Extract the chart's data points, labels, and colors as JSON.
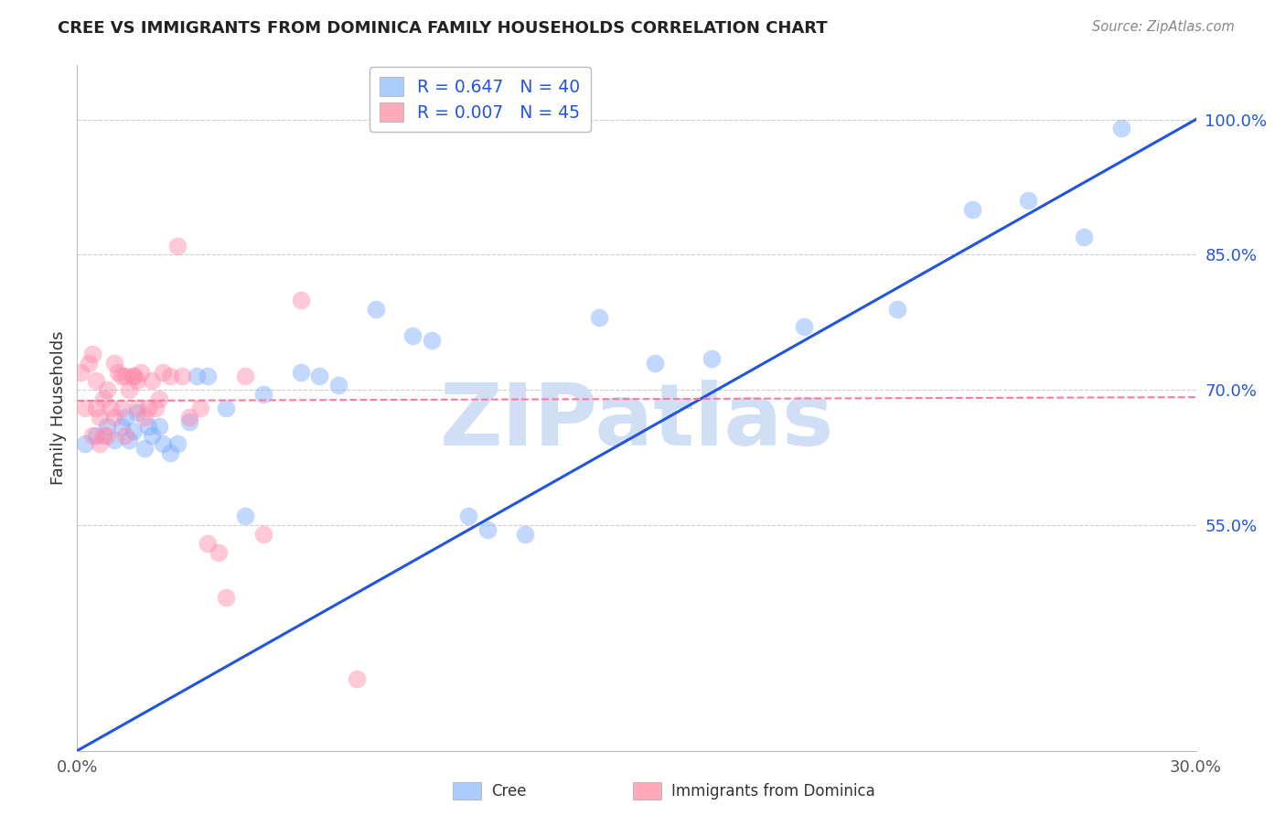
{
  "title": "CREE VS IMMIGRANTS FROM DOMINICA FAMILY HOUSEHOLDS CORRELATION CHART",
  "source": "Source: ZipAtlas.com",
  "ylabel": "Family Households",
  "ytick_labels": [
    "100.0%",
    "85.0%",
    "70.0%",
    "55.0%"
  ],
  "ytick_values": [
    1.0,
    0.85,
    0.7,
    0.55
  ],
  "xmin": 0.0,
  "xmax": 0.3,
  "ymin": 0.3,
  "ymax": 1.06,
  "legend_line1": "R = 0.647   N = 40",
  "legend_line2": "R = 0.007   N = 45",
  "cree_color": "#7aaaff",
  "dominica_color": "#ff88aa",
  "cree_line_color": "#2255dd",
  "dominica_line_color": "#ff7799",
  "watermark": "ZIPatlas",
  "watermark_color": "#d0dff5",
  "background_color": "#ffffff",
  "grid_color": "#cccccc",
  "blue_line_x0": 0.0,
  "blue_line_y0": 0.3,
  "blue_line_x1": 0.3,
  "blue_line_y1": 1.0,
  "pink_line_x0": 0.0,
  "pink_line_y0": 0.688,
  "pink_line_x1": 0.3,
  "pink_line_y1": 0.692,
  "cree_points_x": [
    0.002,
    0.005,
    0.008,
    0.01,
    0.012,
    0.013,
    0.014,
    0.015,
    0.016,
    0.018,
    0.019,
    0.02,
    0.022,
    0.023,
    0.025,
    0.027,
    0.03,
    0.032,
    0.035,
    0.04,
    0.045,
    0.05,
    0.06,
    0.065,
    0.07,
    0.08,
    0.09,
    0.095,
    0.105,
    0.11,
    0.12,
    0.14,
    0.155,
    0.17,
    0.195,
    0.22,
    0.24,
    0.255,
    0.27,
    0.28
  ],
  "cree_points_y": [
    0.64,
    0.65,
    0.66,
    0.645,
    0.66,
    0.67,
    0.645,
    0.655,
    0.675,
    0.635,
    0.66,
    0.65,
    0.66,
    0.64,
    0.63,
    0.64,
    0.665,
    0.715,
    0.715,
    0.68,
    0.56,
    0.695,
    0.72,
    0.715,
    0.705,
    0.79,
    0.76,
    0.755,
    0.56,
    0.545,
    0.54,
    0.78,
    0.73,
    0.735,
    0.77,
    0.79,
    0.9,
    0.91,
    0.87,
    0.99
  ],
  "dominica_points_x": [
    0.001,
    0.002,
    0.003,
    0.004,
    0.004,
    0.005,
    0.005,
    0.006,
    0.006,
    0.007,
    0.007,
    0.008,
    0.008,
    0.009,
    0.01,
    0.01,
    0.011,
    0.012,
    0.012,
    0.013,
    0.013,
    0.014,
    0.015,
    0.015,
    0.016,
    0.016,
    0.017,
    0.018,
    0.019,
    0.02,
    0.021,
    0.022,
    0.023,
    0.025,
    0.027,
    0.028,
    0.03,
    0.033,
    0.035,
    0.038,
    0.04,
    0.045,
    0.05,
    0.06,
    0.075
  ],
  "dominica_points_y": [
    0.72,
    0.68,
    0.73,
    0.65,
    0.74,
    0.68,
    0.71,
    0.64,
    0.67,
    0.65,
    0.69,
    0.7,
    0.65,
    0.68,
    0.67,
    0.73,
    0.72,
    0.715,
    0.68,
    0.65,
    0.715,
    0.7,
    0.715,
    0.715,
    0.71,
    0.68,
    0.72,
    0.67,
    0.68,
    0.71,
    0.68,
    0.69,
    0.72,
    0.715,
    0.86,
    0.715,
    0.67,
    0.68,
    0.53,
    0.52,
    0.47,
    0.715,
    0.54,
    0.8,
    0.38
  ]
}
